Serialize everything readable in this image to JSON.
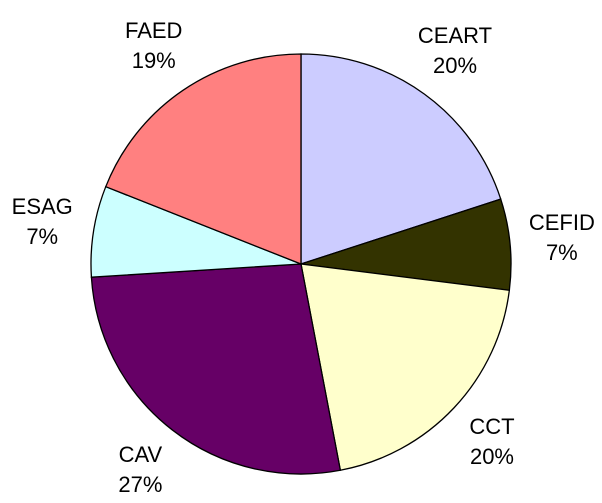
{
  "chart_data": {
    "type": "pie",
    "categories": [
      "CEART",
      "CEFID",
      "CCT",
      "CAV",
      "ESAG",
      "FAED"
    ],
    "values": [
      20,
      7,
      20,
      27,
      7,
      19
    ],
    "value_labels": [
      "20%",
      "7%",
      "20%",
      "27%",
      "7%",
      "19%"
    ],
    "colors": [
      "#ccccff",
      "#333300",
      "#ffffcc",
      "#660066",
      "#ccffff",
      "#ff8080"
    ]
  }
}
